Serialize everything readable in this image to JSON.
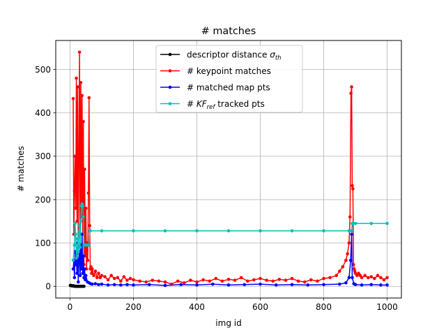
{
  "chart_data": {
    "type": "line",
    "title": "# matches",
    "xlabel": "img id",
    "ylabel": "# matches",
    "xlim": [
      -45,
      1045
    ],
    "ylim": [
      -27,
      567
    ],
    "xticks": [
      0,
      200,
      400,
      600,
      800,
      1000
    ],
    "yticks": [
      0,
      100,
      200,
      300,
      400,
      500
    ],
    "xtick_labels": [
      "0",
      "200",
      "400",
      "600",
      "800",
      "1000"
    ],
    "ytick_labels": [
      "0",
      "100",
      "200",
      "300",
      "400",
      "500"
    ],
    "grid": true,
    "legend_position": "upper-center",
    "series": [
      {
        "name": "descriptor distance σ_th",
        "legend_main": "descriptor distance ",
        "legend_math": "σ",
        "legend_sub": "th",
        "legend_suffix": "",
        "color": "#000000",
        "x": [
          1,
          3,
          5,
          8,
          10,
          12,
          14,
          16,
          18,
          20,
          23,
          26,
          29,
          32,
          35,
          38,
          41,
          44
        ],
        "y": [
          2,
          2,
          1,
          1,
          1,
          1,
          0,
          0,
          0,
          0,
          0,
          0,
          0,
          0,
          0,
          0,
          0,
          0
        ]
      },
      {
        "name": "# keypoint matches",
        "legend_main": "# keypoint matches",
        "legend_math": "",
        "legend_sub": "",
        "legend_suffix": "",
        "color": "#ff0000",
        "x": [
          10,
          12,
          14,
          16,
          18,
          20,
          22,
          24,
          26,
          28,
          30,
          32,
          34,
          36,
          38,
          40,
          42,
          44,
          46,
          48,
          50,
          52,
          54,
          56,
          58,
          60,
          62,
          64,
          66,
          68,
          70,
          75,
          80,
          85,
          90,
          95,
          100,
          110,
          120,
          130,
          140,
          150,
          160,
          170,
          180,
          190,
          200,
          220,
          240,
          260,
          280,
          300,
          320,
          340,
          360,
          380,
          400,
          420,
          440,
          460,
          480,
          500,
          520,
          540,
          560,
          580,
          600,
          620,
          640,
          660,
          680,
          700,
          720,
          740,
          760,
          780,
          800,
          820,
          840,
          850,
          860,
          870,
          875,
          880,
          883,
          886,
          888,
          890,
          892,
          894,
          896,
          898,
          900,
          905,
          910,
          915,
          920,
          930,
          940,
          950,
          960,
          970,
          980,
          990,
          1000
        ],
        "y": [
          433,
          120,
          220,
          300,
          180,
          480,
          150,
          460,
          90,
          300,
          540,
          60,
          470,
          160,
          440,
          120,
          380,
          50,
          270,
          70,
          180,
          40,
          100,
          60,
          215,
          435,
          140,
          40,
          45,
          30,
          40,
          25,
          35,
          20,
          30,
          20,
          25,
          22,
          15,
          25,
          18,
          20,
          12,
          22,
          14,
          18,
          15,
          12,
          10,
          14,
          12,
          10,
          5,
          12,
          8,
          14,
          10,
          15,
          12,
          18,
          12,
          16,
          14,
          20,
          12,
          15,
          18,
          14,
          12,
          16,
          14,
          18,
          12,
          10,
          15,
          12,
          18,
          20,
          25,
          35,
          45,
          60,
          75,
          100,
          160,
          445,
          460,
          232,
          225,
          50,
          40,
          35,
          30,
          25,
          30,
          25,
          20,
          25,
          20,
          22,
          18,
          25,
          20,
          15,
          20
        ]
      },
      {
        "name": "# matched map pts",
        "legend_main": "# matched map pts",
        "legend_math": "",
        "legend_sub": "",
        "legend_suffix": "",
        "color": "#0000ff",
        "x": [
          10,
          12,
          14,
          16,
          18,
          20,
          22,
          24,
          26,
          28,
          30,
          32,
          34,
          36,
          38,
          40,
          42,
          44,
          46,
          48,
          50,
          55,
          60,
          65,
          70,
          80,
          90,
          100,
          120,
          140,
          160,
          180,
          200,
          250,
          300,
          350,
          400,
          450,
          500,
          550,
          600,
          650,
          700,
          750,
          800,
          850,
          870,
          880,
          885,
          888,
          890,
          895,
          900,
          920,
          950,
          980,
          1000
        ],
        "y": [
          40,
          60,
          20,
          80,
          50,
          60,
          30,
          100,
          10,
          60,
          80,
          25,
          95,
          40,
          120,
          30,
          70,
          20,
          40,
          15,
          25,
          10,
          8,
          6,
          5,
          6,
          4,
          5,
          3,
          4,
          3,
          4,
          3,
          4,
          2,
          4,
          3,
          5,
          3,
          4,
          5,
          3,
          4,
          3,
          4,
          5,
          8,
          20,
          60,
          120,
          20,
          6,
          4,
          3,
          4,
          3,
          3
        ]
      },
      {
        "name": "# KF_ref tracked pts",
        "legend_main": "# ",
        "legend_math": "KF",
        "legend_sub": "ref",
        "legend_suffix": "  tracked pts",
        "color": "#00bfbf",
        "x": [
          10,
          14,
          16,
          18,
          20,
          22,
          24,
          26,
          28,
          30,
          32,
          34,
          36,
          38,
          40,
          42,
          44,
          46,
          50,
          55,
          60,
          62,
          64,
          100,
          200,
          300,
          400,
          500,
          600,
          700,
          800,
          880,
          886,
          888,
          890,
          892,
          900,
          950,
          1000
        ],
        "y": [
          60,
          95,
          145,
          120,
          65,
          70,
          110,
          80,
          125,
          140,
          90,
          150,
          185,
          190,
          185,
          160,
          95,
          95,
          95,
          95,
          95,
          128,
          128,
          128,
          128,
          128,
          128,
          128,
          128,
          128,
          128,
          128,
          128,
          128,
          145,
          145,
          145,
          145,
          145
        ]
      }
    ]
  }
}
